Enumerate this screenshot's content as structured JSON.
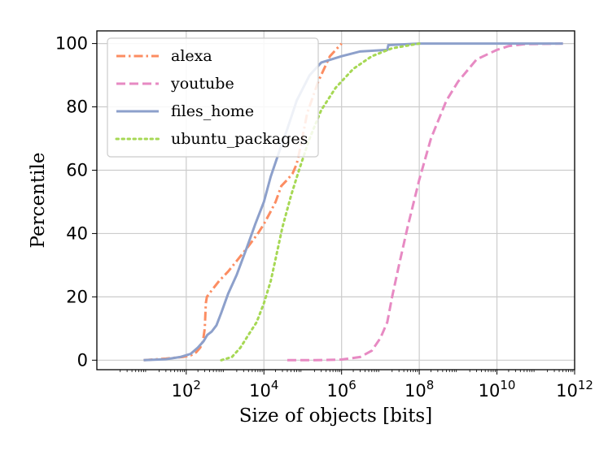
{
  "chart_data": {
    "type": "line",
    "xlabel": "Size of objects [bits]",
    "ylabel": "Percentile",
    "xscale": "log",
    "xlim": [
      0.5,
      1000000000000.0
    ],
    "ylim": [
      -3,
      104
    ],
    "xticks": [
      {
        "value": 100,
        "base": "10",
        "exp": "2"
      },
      {
        "value": 10000,
        "base": "10",
        "exp": "4"
      },
      {
        "value": 1000000,
        "base": "10",
        "exp": "6"
      },
      {
        "value": 100000000,
        "base": "10",
        "exp": "8"
      },
      {
        "value": 10000000000,
        "base": "10",
        "exp": "10"
      },
      {
        "value": 1000000000000,
        "base": "10",
        "exp": "12"
      }
    ],
    "yticks": [
      {
        "value": 0,
        "label": "0"
      },
      {
        "value": 20,
        "label": "20"
      },
      {
        "value": 40,
        "label": "40"
      },
      {
        "value": 60,
        "label": "60"
      },
      {
        "value": 80,
        "label": "80"
      },
      {
        "value": 100,
        "label": "100"
      }
    ],
    "grid": true,
    "legend_position": "top-left",
    "series": [
      {
        "name": "alexa",
        "color": "#fc8d62",
        "style": "dashdot",
        "points": [
          [
            8,
            0
          ],
          [
            30,
            0.5
          ],
          [
            80,
            1
          ],
          [
            130,
            1.5
          ],
          [
            180,
            2.5
          ],
          [
            230,
            4
          ],
          [
            270,
            6
          ],
          [
            300,
            10
          ],
          [
            320,
            18
          ],
          [
            340,
            20
          ],
          [
            450,
            22
          ],
          [
            700,
            25
          ],
          [
            1200,
            28
          ],
          [
            2200,
            32
          ],
          [
            4000,
            36
          ],
          [
            7000,
            40
          ],
          [
            10000,
            43
          ],
          [
            15000,
            47
          ],
          [
            20000,
            50
          ],
          [
            28000,
            55
          ],
          [
            40000,
            57
          ],
          [
            55000,
            59
          ],
          [
            70000,
            62
          ],
          [
            90000,
            68
          ],
          [
            130000,
            78
          ],
          [
            250000,
            88
          ],
          [
            500000,
            96
          ],
          [
            1000000,
            100
          ]
        ]
      },
      {
        "name": "youtube",
        "color": "#e78ac3",
        "style": "dashed",
        "points": [
          [
            40000,
            0
          ],
          [
            200000,
            0
          ],
          [
            1000000,
            0.2
          ],
          [
            3000000,
            1
          ],
          [
            6000000,
            3
          ],
          [
            10000000,
            7
          ],
          [
            15000000,
            12
          ],
          [
            20000000,
            20
          ],
          [
            30000000,
            30
          ],
          [
            50000000,
            42
          ],
          [
            100000000,
            57
          ],
          [
            200000000,
            70
          ],
          [
            500000000,
            82
          ],
          [
            1000000000,
            88
          ],
          [
            3000000000,
            95
          ],
          [
            10000000000,
            98
          ],
          [
            20000000000,
            99.2
          ],
          [
            50000000000,
            99.8
          ],
          [
            500000000000,
            100
          ]
        ]
      },
      {
        "name": "files_home",
        "color": "#8da0cb",
        "style": "solid",
        "points": [
          [
            8,
            0
          ],
          [
            30,
            0.3
          ],
          [
            70,
            1
          ],
          [
            130,
            2
          ],
          [
            200,
            4
          ],
          [
            280,
            6
          ],
          [
            350,
            8
          ],
          [
            450,
            9
          ],
          [
            600,
            11
          ],
          [
            800,
            15
          ],
          [
            1200,
            21
          ],
          [
            2000,
            27
          ],
          [
            3500,
            35
          ],
          [
            6000,
            43
          ],
          [
            10000,
            50
          ],
          [
            15000,
            58
          ],
          [
            25000,
            66
          ],
          [
            40000,
            73
          ],
          [
            70000,
            82
          ],
          [
            150000,
            90
          ],
          [
            300000,
            94
          ],
          [
            1000000,
            96
          ],
          [
            3000000,
            97.5
          ],
          [
            15000000,
            98
          ],
          [
            16000000,
            99.5
          ],
          [
            100000000,
            100
          ],
          [
            500000000000,
            100
          ]
        ]
      },
      {
        "name": "ubuntu_packages",
        "color": "#a6d854",
        "style": "dotted",
        "points": [
          [
            800,
            0
          ],
          [
            1500,
            1
          ],
          [
            2500,
            4
          ],
          [
            4000,
            8
          ],
          [
            6500,
            12
          ],
          [
            10000,
            18
          ],
          [
            15000,
            25
          ],
          [
            20000,
            32
          ],
          [
            30000,
            42
          ],
          [
            50000,
            52
          ],
          [
            80000,
            60
          ],
          [
            150000,
            70
          ],
          [
            300000,
            79
          ],
          [
            700000,
            86
          ],
          [
            2000000,
            92
          ],
          [
            6000000,
            96
          ],
          [
            20000000,
            98.5
          ],
          [
            100000000,
            100
          ]
        ]
      }
    ]
  }
}
